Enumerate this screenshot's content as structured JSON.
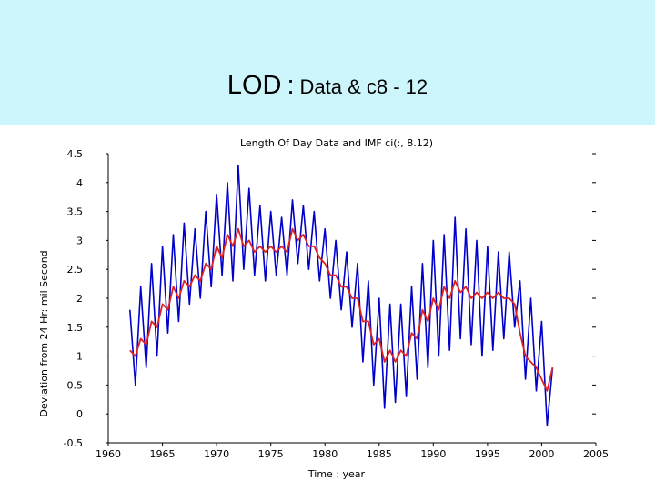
{
  "slide": {
    "title_main": "LOD",
    "title_separator": ":",
    "title_rest": "Data & c8 - 12",
    "background": "#ccf6fc"
  },
  "chart_data": {
    "type": "line",
    "title": "Length Of Day Data and IMF ci(:, 8.12)",
    "xlabel": "Time : year",
    "ylabel": "Deviation from 24 Hr: mil Second",
    "xlim": [
      1960,
      2005
    ],
    "ylim": [
      -0.5,
      4.5
    ],
    "xticks": [
      "1960",
      "1965",
      "1970",
      "1975",
      "1980",
      "1985",
      "1990",
      "1995",
      "2000",
      "2005"
    ],
    "yticks": [
      "-0.5",
      "0",
      "0.5",
      "1",
      "1.5",
      "2",
      "2.5",
      "3",
      "3.5",
      "4",
      "4.5"
    ],
    "grid": false,
    "series": [
      {
        "color": "#0000cc",
        "description_points": "blue = LOD data (seasonal oscillation about trend)",
        "x": [
          1962.0,
          1962.5,
          1963.0,
          1963.5,
          1964.0,
          1964.5,
          1965.0,
          1965.5,
          1966.0,
          1966.5,
          1967.0,
          1967.5,
          1968.0,
          1968.5,
          1969.0,
          1969.5,
          1970.0,
          1970.5,
          1971.0,
          1971.5,
          1972.0,
          1972.5,
          1973.0,
          1973.5,
          1974.0,
          1974.5,
          1975.0,
          1975.5,
          1976.0,
          1976.5,
          1977.0,
          1977.5,
          1978.0,
          1978.5,
          1979.0,
          1979.5,
          1980.0,
          1980.5,
          1981.0,
          1981.5,
          1982.0,
          1982.5,
          1983.0,
          1983.5,
          1984.0,
          1984.5,
          1985.0,
          1985.5,
          1986.0,
          1986.5,
          1987.0,
          1987.5,
          1988.0,
          1988.5,
          1989.0,
          1989.5,
          1990.0,
          1990.5,
          1991.0,
          1991.5,
          1992.0,
          1992.5,
          1993.0,
          1993.5,
          1994.0,
          1994.5,
          1995.0,
          1995.5,
          1996.0,
          1996.5,
          1997.0,
          1997.5,
          1998.0,
          1998.5,
          1999.0,
          1999.5,
          2000.0,
          2000.5,
          2001.0
        ],
        "y": [
          1.8,
          0.5,
          2.2,
          0.8,
          2.6,
          1.0,
          2.9,
          1.4,
          3.1,
          1.6,
          3.3,
          1.9,
          3.2,
          2.0,
          3.5,
          2.2,
          3.8,
          2.4,
          4.0,
          2.3,
          4.3,
          2.5,
          3.9,
          2.4,
          3.6,
          2.3,
          3.5,
          2.4,
          3.4,
          2.4,
          3.7,
          2.6,
          3.6,
          2.5,
          3.5,
          2.3,
          3.2,
          2.0,
          3.0,
          1.8,
          2.8,
          1.5,
          2.6,
          0.9,
          2.3,
          0.5,
          2.0,
          0.1,
          1.9,
          0.2,
          1.9,
          0.3,
          2.2,
          0.6,
          2.6,
          0.8,
          3.0,
          1.0,
          3.1,
          1.1,
          3.4,
          1.3,
          3.2,
          1.2,
          3.0,
          1.0,
          2.9,
          1.1,
          2.8,
          1.3,
          2.8,
          1.5,
          2.3,
          0.6,
          2.0,
          0.4,
          1.6,
          -0.2,
          0.8
        ]
      },
      {
        "color": "#dd2222",
        "x": [
          1962.0,
          1962.5,
          1963.0,
          1963.5,
          1964.0,
          1964.5,
          1965.0,
          1965.5,
          1966.0,
          1966.5,
          1967.0,
          1967.5,
          1968.0,
          1968.5,
          1969.0,
          1969.5,
          1970.0,
          1970.5,
          1971.0,
          1971.5,
          1972.0,
          1972.5,
          1973.0,
          1973.5,
          1974.0,
          1974.5,
          1975.0,
          1975.5,
          1976.0,
          1976.5,
          1977.0,
          1977.5,
          1978.0,
          1978.5,
          1979.0,
          1979.5,
          1980.0,
          1980.5,
          1981.0,
          1981.5,
          1982.0,
          1982.5,
          1983.0,
          1983.5,
          1984.0,
          1984.5,
          1985.0,
          1985.5,
          1986.0,
          1986.5,
          1987.0,
          1987.5,
          1988.0,
          1988.5,
          1989.0,
          1989.5,
          1990.0,
          1990.5,
          1991.0,
          1991.5,
          1992.0,
          1992.5,
          1993.0,
          1993.5,
          1994.0,
          1994.5,
          1995.0,
          1995.5,
          1996.0,
          1996.5,
          1997.0,
          1997.5,
          1998.0,
          1998.5,
          1999.0,
          1999.5,
          2000.0,
          2000.5,
          2001.0
        ],
        "y": [
          1.1,
          1.0,
          1.3,
          1.2,
          1.6,
          1.5,
          1.9,
          1.8,
          2.2,
          2.0,
          2.3,
          2.2,
          2.4,
          2.3,
          2.6,
          2.5,
          2.9,
          2.7,
          3.1,
          2.9,
          3.2,
          2.9,
          3.0,
          2.8,
          2.9,
          2.8,
          2.9,
          2.8,
          2.9,
          2.8,
          3.2,
          3.0,
          3.1,
          2.9,
          2.9,
          2.7,
          2.6,
          2.4,
          2.4,
          2.2,
          2.2,
          2.0,
          2.0,
          1.6,
          1.6,
          1.2,
          1.3,
          0.9,
          1.1,
          0.9,
          1.1,
          1.0,
          1.4,
          1.3,
          1.8,
          1.6,
          2.0,
          1.8,
          2.2,
          2.0,
          2.3,
          2.1,
          2.2,
          2.0,
          2.1,
          2.0,
          2.1,
          2.0,
          2.1,
          2.0,
          2.0,
          1.9,
          1.4,
          1.0,
          0.9,
          0.8,
          0.6,
          0.4,
          0.8
        ]
      }
    ]
  }
}
